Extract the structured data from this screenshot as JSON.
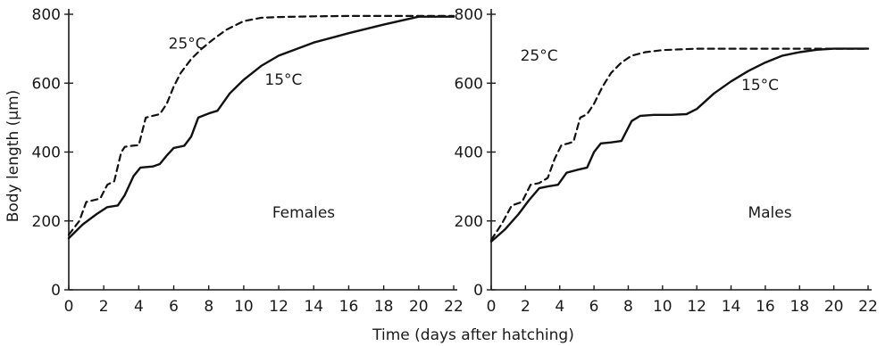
{
  "figure": {
    "ylabel": "Body length (μm)",
    "xlabel": "Time (days after hatching)"
  },
  "chart_data": [
    {
      "type": "line",
      "panel_label": "Females",
      "xlim": [
        0,
        22
      ],
      "ylim": [
        0,
        800
      ],
      "xticks": [
        0,
        2,
        4,
        6,
        8,
        10,
        12,
        14,
        16,
        18,
        20,
        22
      ],
      "yticks": [
        0,
        200,
        400,
        600,
        800
      ],
      "series": [
        {
          "name": "25°C",
          "style": "dashed",
          "x": [
            0,
            0.6,
            1.0,
            1.4,
            1.8,
            2.2,
            2.6,
            3.0,
            3.2,
            3.6,
            4.0,
            4.4,
            4.8,
            5.2,
            5.6,
            6.0,
            6.4,
            7.0,
            7.6,
            8.2,
            9.0,
            10.0,
            11.0,
            12.0,
            14.0,
            16.0,
            18.0,
            19.0,
            20.0,
            22.0
          ],
          "y": [
            160,
            200,
            255,
            260,
            265,
            305,
            315,
            400,
            415,
            418,
            420,
            500,
            505,
            510,
            540,
            590,
            630,
            670,
            700,
            725,
            755,
            780,
            790,
            792,
            794,
            795,
            795,
            795,
            795,
            795
          ]
        },
        {
          "name": "15°C",
          "style": "solid",
          "x": [
            0,
            0.8,
            1.6,
            2.2,
            2.8,
            3.2,
            3.7,
            4.1,
            4.8,
            5.2,
            5.6,
            6.0,
            6.6,
            7.0,
            7.4,
            8.0,
            8.5,
            9.2,
            10.0,
            11.0,
            12.0,
            14.0,
            16.0,
            18.0,
            20.0,
            22.0
          ],
          "y": [
            150,
            190,
            220,
            240,
            245,
            275,
            330,
            355,
            358,
            365,
            390,
            412,
            418,
            445,
            500,
            512,
            520,
            570,
            610,
            650,
            680,
            718,
            745,
            770,
            793,
            793
          ]
        }
      ],
      "annotations": [
        {
          "text": "25°C",
          "x": 5.7,
          "y": 700
        },
        {
          "text": "15°C",
          "x": 11.2,
          "y": 595
        }
      ]
    },
    {
      "type": "line",
      "panel_label": "Males",
      "xlim": [
        0,
        22
      ],
      "ylim": [
        0,
        800
      ],
      "xticks": [
        0,
        2,
        4,
        6,
        8,
        10,
        12,
        14,
        16,
        18,
        20,
        22
      ],
      "yticks": [
        0,
        200,
        400,
        600,
        800
      ],
      "series": [
        {
          "name": "25°C",
          "style": "dashed",
          "x": [
            0,
            0.6,
            1.2,
            1.8,
            2.3,
            2.8,
            3.3,
            3.7,
            4.1,
            4.5,
            4.8,
            5.2,
            5.6,
            6.0,
            6.5,
            7.0,
            7.6,
            8.2,
            9.0,
            10.0,
            11.0,
            12.0,
            14.0,
            16.0,
            18.0,
            20.0,
            22.0
          ],
          "y": [
            145,
            190,
            245,
            255,
            305,
            310,
            325,
            380,
            420,
            425,
            430,
            500,
            510,
            540,
            590,
            630,
            660,
            680,
            690,
            696,
            698,
            700,
            700,
            700,
            700,
            700,
            700
          ]
        },
        {
          "name": "15°C",
          "style": "solid",
          "x": [
            0,
            0.8,
            1.6,
            2.2,
            2.8,
            3.3,
            3.9,
            4.4,
            5.0,
            5.6,
            6.0,
            6.4,
            7.0,
            7.6,
            8.2,
            8.7,
            9.5,
            10.5,
            11.4,
            12.0,
            13.0,
            14.0,
            15.0,
            16.0,
            17.0,
            18.0,
            19.0,
            20.0,
            22.0
          ],
          "y": [
            140,
            175,
            220,
            260,
            295,
            300,
            305,
            340,
            348,
            355,
            400,
            425,
            428,
            432,
            490,
            505,
            508,
            508,
            510,
            525,
            570,
            605,
            635,
            660,
            680,
            690,
            697,
            700,
            700
          ]
        }
      ],
      "annotations": [
        {
          "text": "25°C",
          "x": 1.7,
          "y": 665
        },
        {
          "text": "15°C",
          "x": 14.6,
          "y": 580
        }
      ]
    }
  ]
}
